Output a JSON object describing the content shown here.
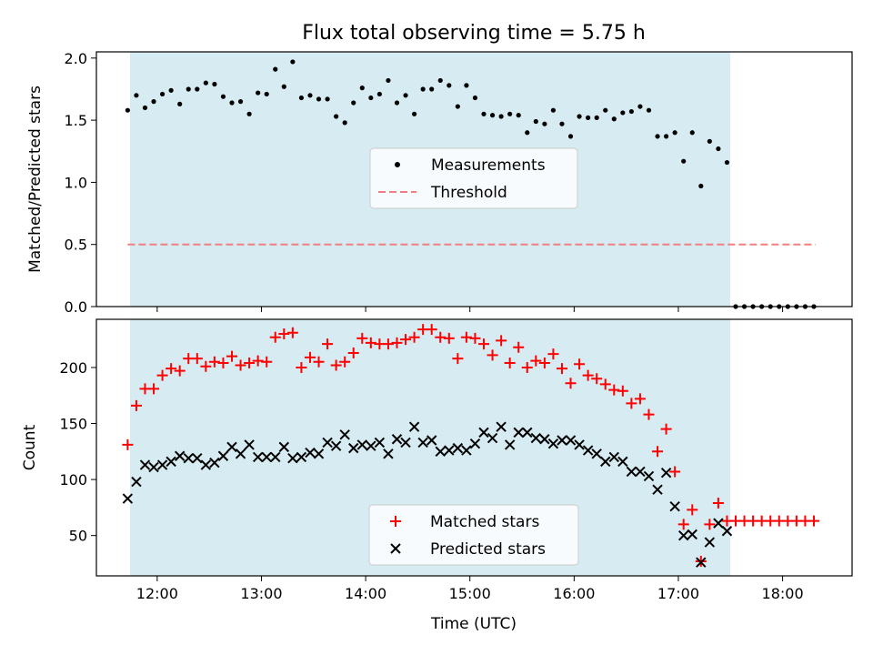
{
  "chart_data": [
    {
      "type": "scatter",
      "title": "Flux total observing time = 5.75 h",
      "ylabel": "Matched/Predicted stars",
      "xlim": [
        "11:25",
        "18:40"
      ],
      "ylim": [
        0,
        2.05
      ],
      "yticks": [
        0.0,
        0.5,
        1.0,
        1.5,
        2.0
      ],
      "ytick_labels": [
        "0.0",
        "0.5",
        "1.0",
        "1.5",
        "2.0"
      ],
      "shaded_span": [
        "11:43",
        "17:27"
      ],
      "threshold": {
        "name": "Threshold",
        "value": 0.5,
        "x": [
          "11:43",
          "18:19"
        ],
        "color": "#f08080"
      },
      "legend": {
        "location": "center",
        "entries": [
          "Measurements",
          "Threshold"
        ]
      },
      "series": [
        {
          "name": "Measurements",
          "color": "#000000",
          "x": [
            "11:43",
            "11:48",
            "11:53",
            "11:58",
            "12:03",
            "12:08",
            "12:13",
            "12:18",
            "12:23",
            "12:28",
            "12:33",
            "12:38",
            "12:43",
            "12:48",
            "12:53",
            "12:58",
            "13:03",
            "13:08",
            "13:13",
            "13:18",
            "13:23",
            "13:28",
            "13:33",
            "13:38",
            "13:43",
            "13:48",
            "13:53",
            "13:58",
            "14:03",
            "14:08",
            "14:13",
            "14:18",
            "14:23",
            "14:28",
            "14:33",
            "14:38",
            "14:43",
            "14:48",
            "14:53",
            "14:58",
            "15:03",
            "15:08",
            "15:13",
            "15:18",
            "15:23",
            "15:28",
            "15:33",
            "15:38",
            "15:43",
            "15:48",
            "15:53",
            "15:58",
            "16:03",
            "16:08",
            "16:13",
            "16:18",
            "16:23",
            "16:28",
            "16:33",
            "16:38",
            "16:43",
            "16:48",
            "16:53",
            "16:58",
            "17:03",
            "17:08",
            "17:13",
            "17:18",
            "17:23",
            "17:28",
            "17:33",
            "17:38",
            "17:43",
            "17:48",
            "17:53",
            "17:58",
            "18:03",
            "18:08",
            "18:13",
            "18:18"
          ],
          "y": [
            1.58,
            1.7,
            1.6,
            1.65,
            1.71,
            1.74,
            1.63,
            1.75,
            1.75,
            1.8,
            1.79,
            1.69,
            1.64,
            1.65,
            1.55,
            1.72,
            1.71,
            1.91,
            1.77,
            1.97,
            1.68,
            1.7,
            1.67,
            1.67,
            1.53,
            1.48,
            1.64,
            1.76,
            1.68,
            1.71,
            1.82,
            1.64,
            1.7,
            1.55,
            1.75,
            1.75,
            1.82,
            1.78,
            1.61,
            1.78,
            1.68,
            1.55,
            1.54,
            1.53,
            1.55,
            1.54,
            1.4,
            1.49,
            1.47,
            1.58,
            1.47,
            1.37,
            1.53,
            1.52,
            1.52,
            1.58,
            1.51,
            1.56,
            1.57,
            1.61,
            1.58,
            1.37,
            1.37,
            1.4,
            1.17,
            1.4,
            0.97,
            1.33,
            1.27,
            1.16,
            0.0,
            0.0,
            0.0,
            0.0,
            0.0,
            0.0,
            0.0,
            0.0,
            0.0,
            0.0
          ]
        }
      ]
    },
    {
      "type": "scatter",
      "xlabel": "Time (UTC)",
      "ylabel": "Count",
      "xlim": [
        "11:25",
        "18:40"
      ],
      "ylim": [
        14,
        243
      ],
      "yticks": [
        50,
        100,
        150,
        200
      ],
      "ytick_labels": [
        "50",
        "100",
        "150",
        "200"
      ],
      "xticks": [
        "12:00",
        "13:00",
        "14:00",
        "15:00",
        "16:00",
        "17:00",
        "18:00"
      ],
      "shaded_span": [
        "11:43",
        "17:27"
      ],
      "legend": {
        "location": "lower center",
        "entries": [
          "Matched stars",
          "Predicted stars"
        ]
      },
      "series": [
        {
          "name": "Matched stars",
          "color": "#ff0000",
          "marker": "+",
          "x": [
            "11:43",
            "11:48",
            "11:53",
            "11:58",
            "12:03",
            "12:08",
            "12:13",
            "12:18",
            "12:23",
            "12:28",
            "12:33",
            "12:38",
            "12:43",
            "12:48",
            "12:53",
            "12:58",
            "13:03",
            "13:08",
            "13:13",
            "13:18",
            "13:23",
            "13:28",
            "13:33",
            "13:38",
            "13:43",
            "13:48",
            "13:53",
            "13:58",
            "14:03",
            "14:08",
            "14:13",
            "14:18",
            "14:23",
            "14:28",
            "14:33",
            "14:38",
            "14:43",
            "14:48",
            "14:53",
            "14:58",
            "15:03",
            "15:08",
            "15:13",
            "15:18",
            "15:23",
            "15:28",
            "15:33",
            "15:38",
            "15:43",
            "15:48",
            "15:53",
            "15:58",
            "16:03",
            "16:08",
            "16:13",
            "16:18",
            "16:23",
            "16:28",
            "16:33",
            "16:38",
            "16:43",
            "16:48",
            "16:53",
            "16:58",
            "17:03",
            "17:08",
            "17:13",
            "17:18",
            "17:23",
            "17:28",
            "17:33",
            "17:38",
            "17:43",
            "17:48",
            "17:53",
            "17:58",
            "18:03",
            "18:08",
            "18:13",
            "18:18"
          ],
          "y": [
            131,
            166,
            181,
            181,
            193,
            199,
            197,
            208,
            208,
            201,
            205,
            204,
            210,
            202,
            204,
            206,
            205,
            227,
            230,
            231,
            200,
            209,
            205,
            221,
            202,
            205,
            213,
            226,
            222,
            221,
            221,
            222,
            225,
            227,
            234,
            234,
            227,
            226,
            208,
            227,
            226,
            221,
            211,
            224,
            204,
            218,
            200,
            206,
            204,
            212,
            199,
            186,
            203,
            193,
            190,
            185,
            180,
            179,
            168,
            172,
            158,
            125,
            145,
            107,
            60,
            73,
            27,
            60,
            79,
            63,
            63,
            63,
            63,
            63,
            63,
            63,
            63,
            63,
            63,
            63
          ]
        },
        {
          "name": "Predicted stars",
          "color": "#000000",
          "marker": "x",
          "x": [
            "11:43",
            "11:48",
            "11:53",
            "11:58",
            "12:03",
            "12:08",
            "12:13",
            "12:18",
            "12:23",
            "12:28",
            "12:33",
            "12:38",
            "12:43",
            "12:48",
            "12:53",
            "12:58",
            "13:03",
            "13:08",
            "13:13",
            "13:18",
            "13:23",
            "13:28",
            "13:33",
            "13:38",
            "13:43",
            "13:48",
            "13:53",
            "13:58",
            "14:03",
            "14:08",
            "14:13",
            "14:18",
            "14:23",
            "14:28",
            "14:33",
            "14:38",
            "14:43",
            "14:48",
            "14:53",
            "14:58",
            "15:03",
            "15:08",
            "15:13",
            "15:18",
            "15:23",
            "15:28",
            "15:33",
            "15:38",
            "15:43",
            "15:48",
            "15:53",
            "15:58",
            "16:03",
            "16:08",
            "16:13",
            "16:18",
            "16:23",
            "16:28",
            "16:33",
            "16:38",
            "16:43",
            "16:48",
            "16:53",
            "16:58",
            "17:03",
            "17:08",
            "17:13",
            "17:18",
            "17:23",
            "17:28"
          ],
          "y": [
            83,
            98,
            113,
            111,
            113,
            116,
            121,
            119,
            119,
            113,
            115,
            121,
            129,
            123,
            131,
            120,
            120,
            120,
            129,
            119,
            120,
            124,
            123,
            133,
            130,
            140,
            128,
            131,
            130,
            133,
            123,
            136,
            133,
            147,
            133,
            135,
            125,
            126,
            128,
            126,
            132,
            142,
            137,
            147,
            131,
            142,
            142,
            137,
            136,
            132,
            135,
            135,
            131,
            126,
            123,
            116,
            120,
            116,
            107,
            107,
            103,
            91,
            106,
            76,
            50,
            51,
            26,
            44,
            61,
            54
          ]
        }
      ]
    }
  ]
}
